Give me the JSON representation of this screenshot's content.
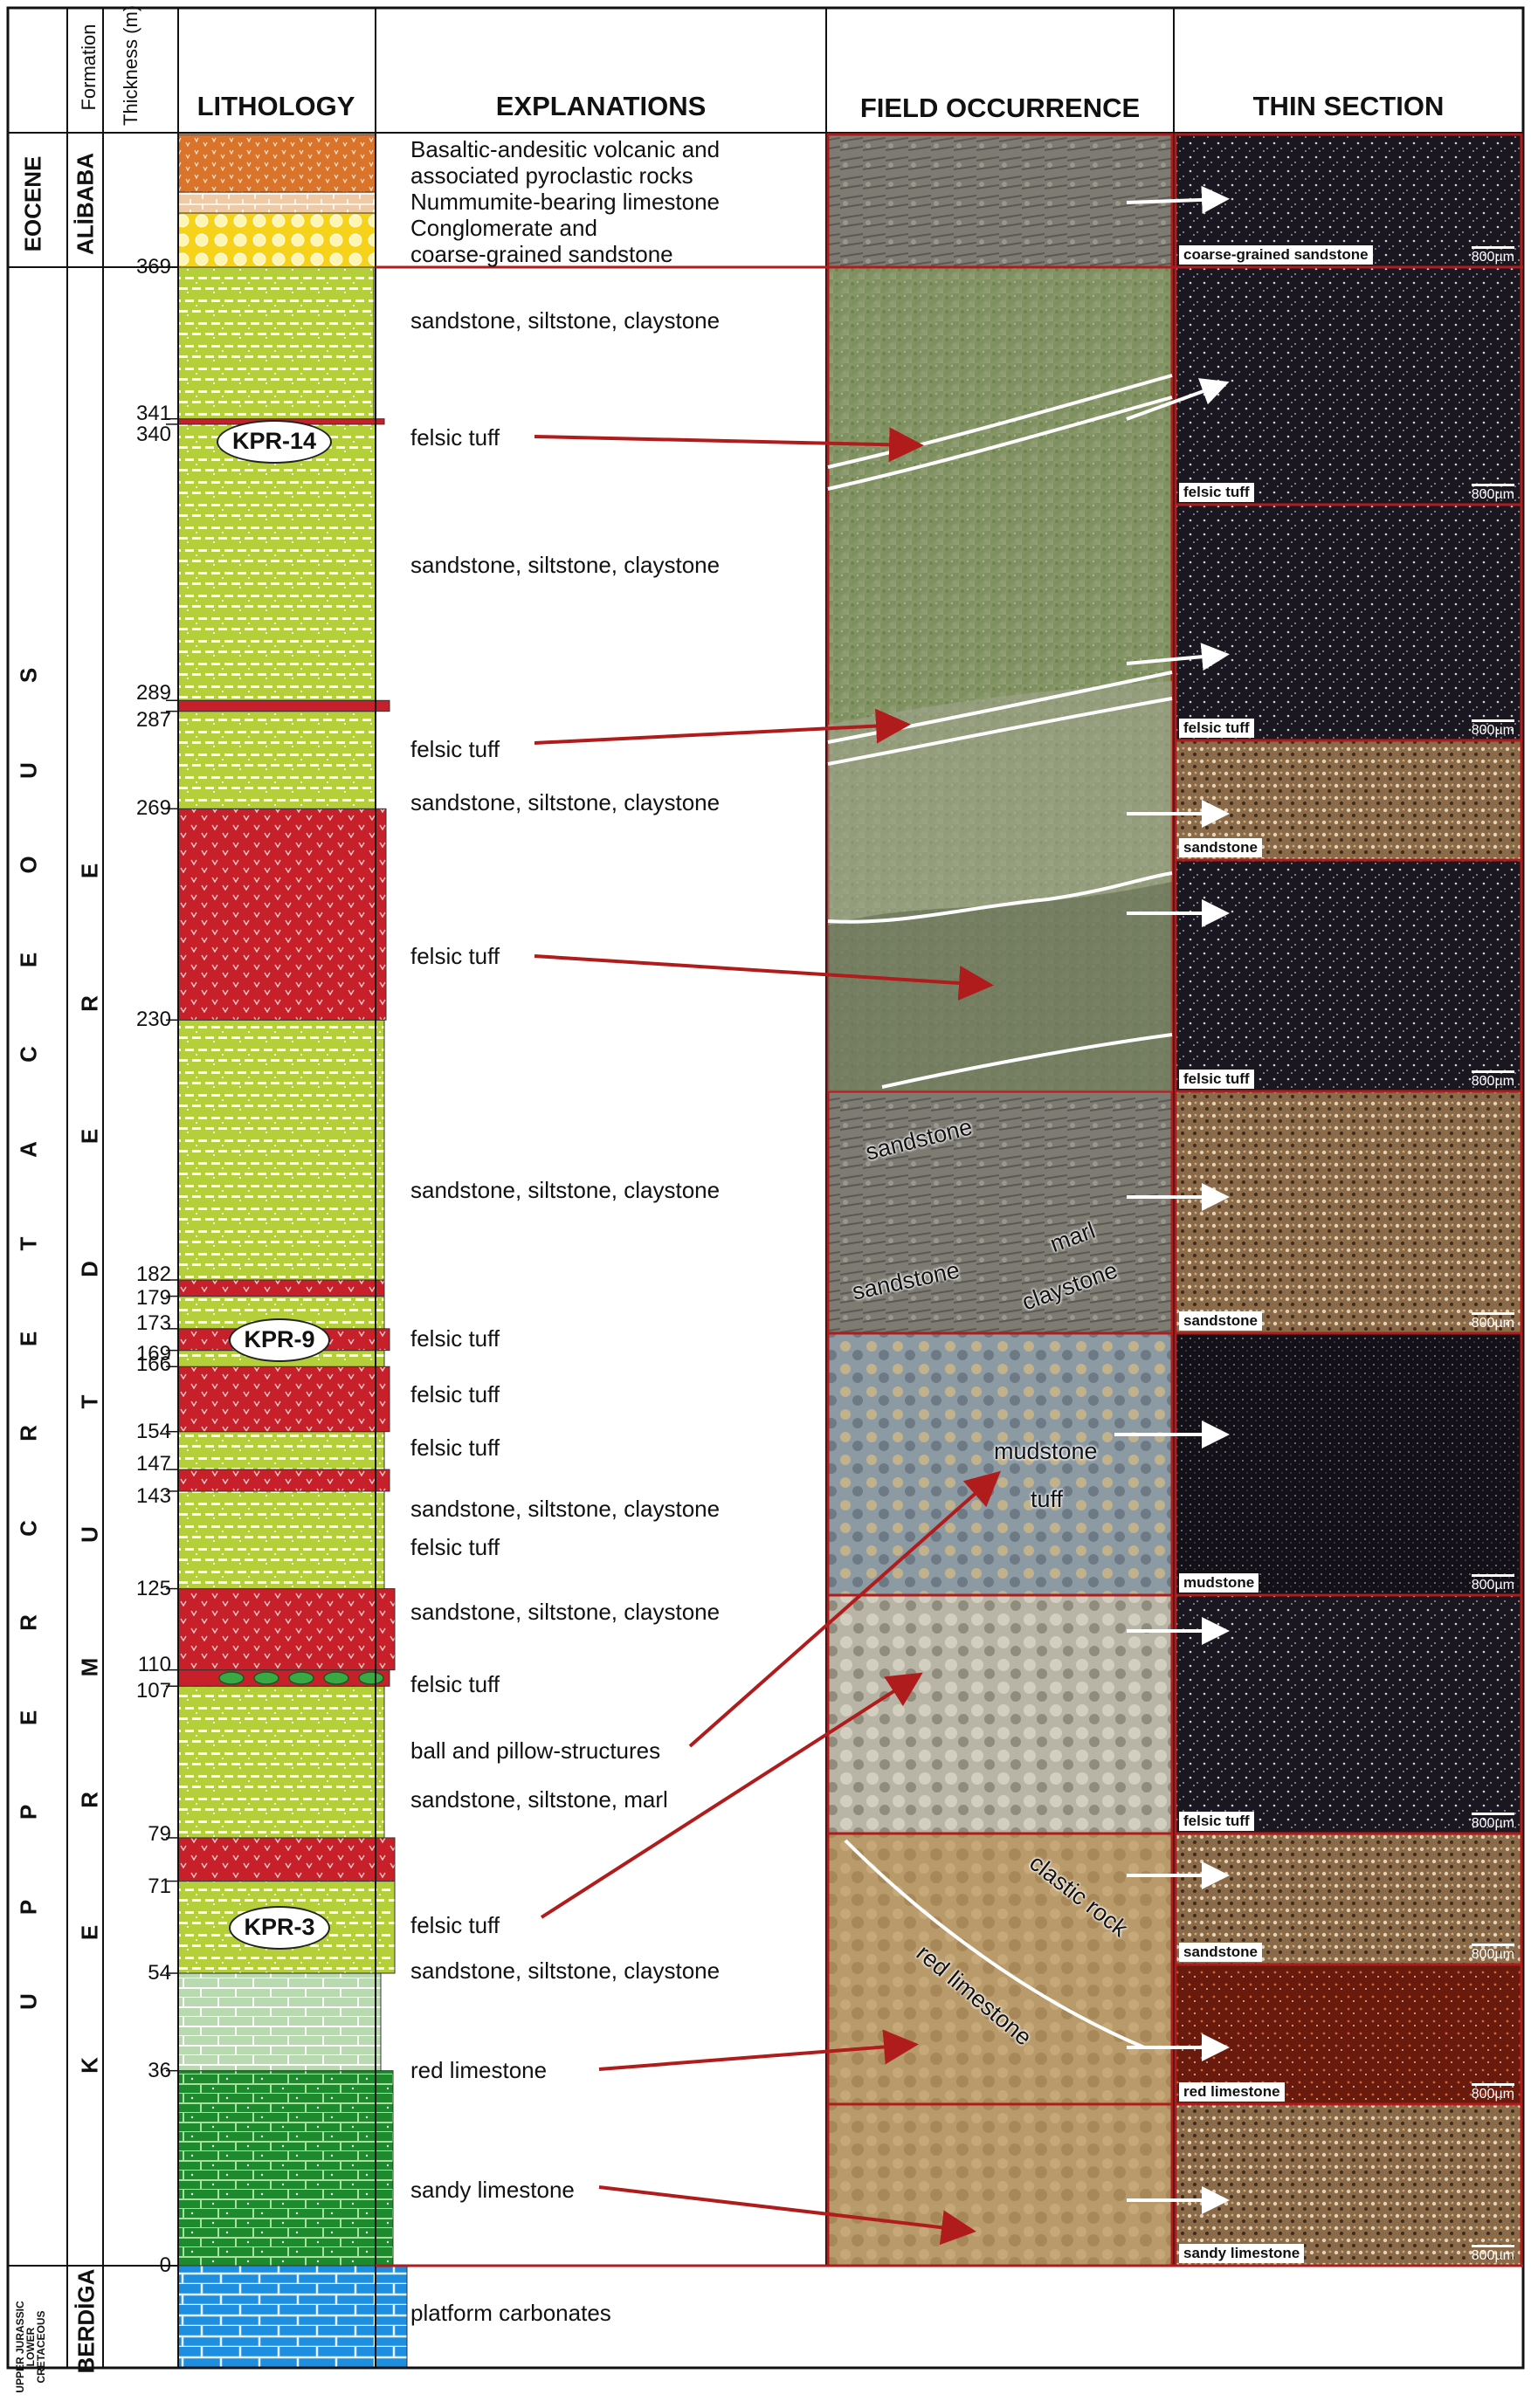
{
  "headers": {
    "formation": "Formation",
    "thickness": "Thickness (m)",
    "lithology": "LITHOLOGY",
    "explanations": "EXPLANATIONS",
    "field": "FIELD OCCURRENCE",
    "thin": "THIN SECTION"
  },
  "ages": {
    "eocene": "EOCENE",
    "upper_cretaceous": [
      "U",
      "P",
      "P",
      "E",
      "R",
      "C",
      "R",
      "E",
      "T",
      "A",
      "C",
      "E",
      "O",
      "U",
      "S"
    ],
    "jurassic_1": "UPPER JURASSIC",
    "jurassic_2": "LOWER",
    "jurassic_3": "CRETACEOUS"
  },
  "formations": {
    "alibaba": "ALİBABA",
    "kermutdere": [
      "K",
      "E",
      "R",
      "M",
      "U",
      "T",
      "D",
      "E",
      "R",
      "E"
    ],
    "berdiga": "BERDİGA"
  },
  "thickness_ticks": [
    {
      "label": "369",
      "v": 369
    },
    {
      "label": "341",
      "v": 341
    },
    {
      "label": "340",
      "v": 340
    },
    {
      "label": "289",
      "v": 289
    },
    {
      "label": "287",
      "v": 287
    },
    {
      "label": "269",
      "v": 269
    },
    {
      "label": "230",
      "v": 230
    },
    {
      "label": "182",
      "v": 182
    },
    {
      "label": "179",
      "v": 179
    },
    {
      "label": "173",
      "v": 173
    },
    {
      "label": "169",
      "v": 169
    },
    {
      "label": "166",
      "v": 166
    },
    {
      "label": "154",
      "v": 154
    },
    {
      "label": "147",
      "v": 147
    },
    {
      "label": "143",
      "v": 143
    },
    {
      "label": "125",
      "v": 125
    },
    {
      "label": "110",
      "v": 110
    },
    {
      "label": "107",
      "v": 107
    },
    {
      "label": "79",
      "v": 79
    },
    {
      "label": "71",
      "v": 71
    },
    {
      "label": "54",
      "v": 54
    },
    {
      "label": "36",
      "v": 36
    },
    {
      "label": "0",
      "v": 0
    }
  ],
  "explanations": [
    {
      "text": "Basaltic-andesitic volcanic and"
    },
    {
      "text": "associated pyroclastic rocks"
    },
    {
      "text": "Nummumite-bearing limestone"
    },
    {
      "text": "Conglomerate and"
    },
    {
      "text": "coarse-grained sandstone"
    },
    {
      "text": "sandstone, siltstone, claystone"
    },
    {
      "text": "felsic tuff"
    },
    {
      "text": "sandstone, siltstone, claystone"
    },
    {
      "text": "felsic tuff"
    },
    {
      "text": "sandstone, siltstone, claystone"
    },
    {
      "text": "felsic tuff"
    },
    {
      "text": "sandstone, siltstone, claystone"
    },
    {
      "text": "felsic tuff"
    },
    {
      "text": "felsic tuff"
    },
    {
      "text": "felsic tuff"
    },
    {
      "text": "sandstone, siltstone, claystone"
    },
    {
      "text": "felsic tuff"
    },
    {
      "text": "sandstone, siltstone, claystone"
    },
    {
      "text": "felsic tuff"
    },
    {
      "text": "ball and pillow-structures"
    },
    {
      "text": "sandstone, siltstone, marl"
    },
    {
      "text": "felsic tuff"
    },
    {
      "text": "sandstone, siltstone, claystone"
    },
    {
      "text": "red limestone"
    },
    {
      "text": "sandy limestone"
    },
    {
      "text": "platform carbonates"
    }
  ],
  "samples": [
    "KPR-14",
    "KPR-9",
    "KPR-3"
  ],
  "field_labels": [
    "sandstone",
    "marl",
    "sandstone",
    "claystone",
    "mudstone",
    "tuff",
    "clastic rock",
    "red limestone"
  ],
  "thin_sections": [
    {
      "label": "coarse-grained sandstone",
      "scale": "800µm"
    },
    {
      "label": "felsic tuff",
      "scale": "800µm"
    },
    {
      "label": "felsic tuff",
      "scale": "800µm"
    },
    {
      "label": "sandstone",
      "scale": ""
    },
    {
      "label": "felsic tuff",
      "scale": "800µm"
    },
    {
      "label": "sandstone",
      "scale": "800µm"
    },
    {
      "label": "mudstone",
      "scale": "800µm"
    },
    {
      "label": "felsic tuff",
      "scale": "800µm"
    },
    {
      "label": "sandstone",
      "scale": "800µm"
    },
    {
      "label": "red limestone",
      "scale": "800µm"
    },
    {
      "label": "sandy limestone",
      "scale": "800µm"
    }
  ],
  "colors": {
    "sandstone": "#b5cf3b",
    "tuff": "#c8202a",
    "red_limestone": "#b9dab0",
    "sandy_limestone": "#1d8a2e",
    "platform": "#1e8fe0",
    "eocene_volcanic": "#d9742a",
    "conglomerate": "#f7d21a",
    "arrow": "#b01c1c"
  }
}
